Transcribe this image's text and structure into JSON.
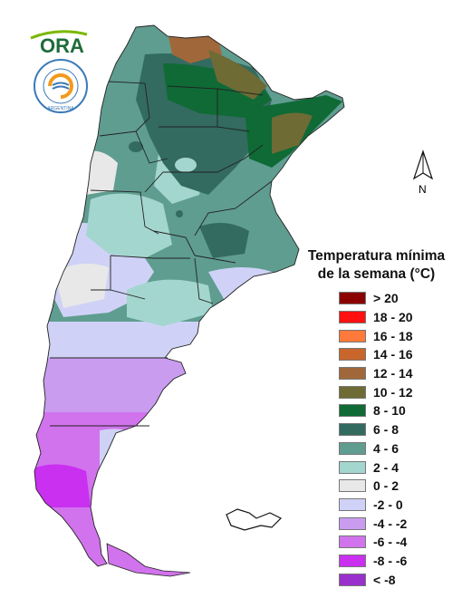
{
  "logos": {
    "ora_text": "ORA",
    "seal_text": "ARGENTINA"
  },
  "north_label": "N",
  "legend": {
    "title_line1": "Temperatura mínima",
    "title_line2": "de la semana (°C)",
    "items": [
      {
        "label": "> 20",
        "color": "#8b0000"
      },
      {
        "label": "18 - 20",
        "color": "#ff1010"
      },
      {
        "label": "16 - 18",
        "color": "#ff7a3a"
      },
      {
        "label": "14 - 16",
        "color": "#c8662c"
      },
      {
        "label": "12 - 14",
        "color": "#a0683a"
      },
      {
        "label": "10 - 12",
        "color": "#6e6b35"
      },
      {
        "label": "8 - 10",
        "color": "#0f6a35"
      },
      {
        "label": "6 - 8",
        "color": "#336b60"
      },
      {
        "label": "4 - 6",
        "color": "#5f9d90"
      },
      {
        "label": "2 - 4",
        "color": "#a3d6cf"
      },
      {
        "label": "0 - 2",
        "color": "#e8e8e8"
      },
      {
        "label": "-2 - 0",
        "color": "#cfd2f6"
      },
      {
        "label": "-4 - -2",
        "color": "#c99cf0"
      },
      {
        "label": "-6 - -4",
        "color": "#d173ec"
      },
      {
        "label": "-8 - -6",
        "color": "#c930f0"
      },
      {
        "label": "< -8",
        "color": "#9930cc"
      }
    ]
  }
}
